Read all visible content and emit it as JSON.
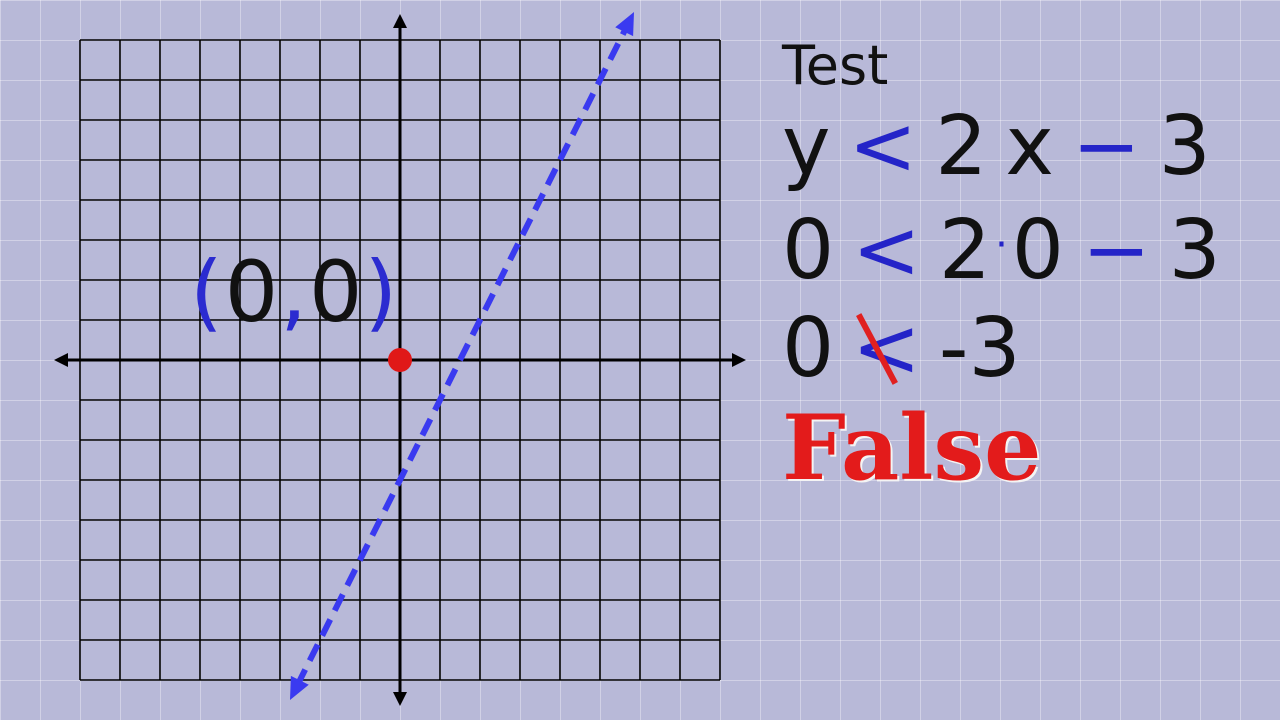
{
  "graph": {
    "grid_range": [
      -8,
      8
    ],
    "line": {
      "slope": 2,
      "intercept": -3,
      "style": "dashed",
      "color": "#3a3af0"
    },
    "test_point": {
      "x": 0,
      "y": 0,
      "color": "#e01818"
    },
    "point_label": {
      "open": "(",
      "x": "0",
      "comma": ",",
      "y": "0",
      "close": ")"
    }
  },
  "work": {
    "title": "Test",
    "line1": {
      "y": "y",
      "op": "<",
      "coef": "2",
      "var": "x",
      "minus": "−",
      "const": "3"
    },
    "line2": {
      "lhs": "0",
      "op": "<",
      "coef": "2",
      "dot": "·",
      "x": "0",
      "minus": "−",
      "const": "3"
    },
    "line3": {
      "lhs": "0",
      "op": "<",
      "rhs": "-3"
    },
    "result": "False"
  },
  "colors": {
    "operator": "#2424c8",
    "false": "#e31b1b"
  }
}
